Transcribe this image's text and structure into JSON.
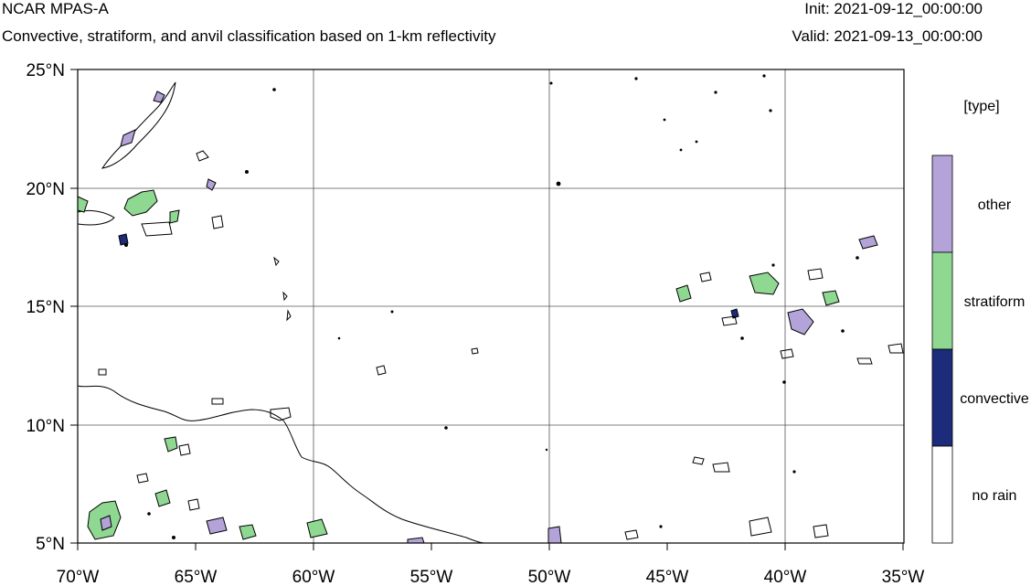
{
  "header": {
    "title": "NCAR MPAS-A",
    "subtitle": "Convective, stratiform, and anvil classification based on 1-km reflectivity",
    "init_label": "Init: 2021-09-12_00:00:00",
    "valid_label": "Valid: 2021-09-13_00:00:00"
  },
  "map": {
    "lon_range": [
      -70,
      -35
    ],
    "lat_range": [
      5,
      25
    ],
    "gridlines": true,
    "x_ticks": [
      "70°W",
      "65°W",
      "60°W",
      "55°W",
      "50°W",
      "45°W",
      "40°W",
      "35°W"
    ],
    "y_ticks": [
      "25°N",
      "20°N",
      "15°N",
      "10°N",
      "5°N"
    ]
  },
  "legend": {
    "title": "[type]",
    "items": [
      {
        "label": "other",
        "color": "#b3a3d9"
      },
      {
        "label": "stratiform",
        "color": "#8fd891"
      },
      {
        "label": "convective",
        "color": "#1c2b7a"
      },
      {
        "label": "no rain",
        "color": "#ffffff"
      }
    ]
  },
  "colors": {
    "coastline": "#000000",
    "grid": "#555555"
  }
}
